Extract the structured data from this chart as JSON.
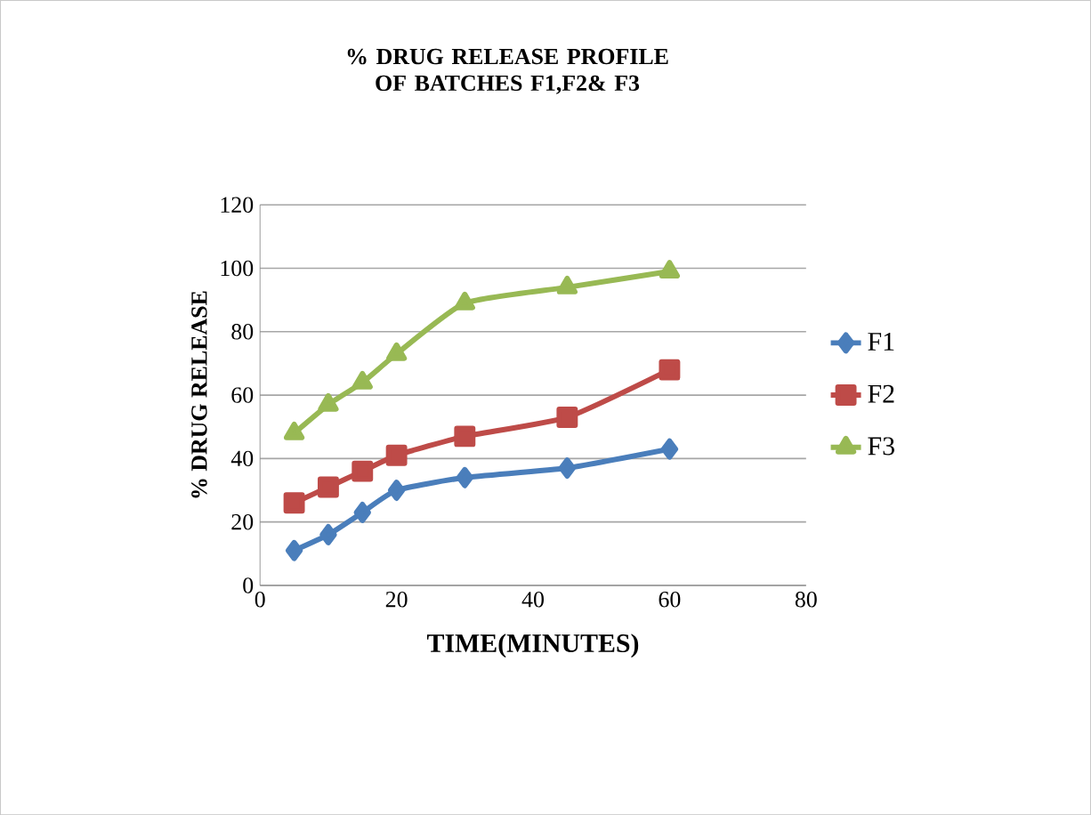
{
  "chart_data": {
    "type": "line",
    "title": "% DRUG RELEASE PROFILE OF BATCHES F1,F2& F3",
    "xlabel": "TIME(MINUTES)",
    "ylabel": "% DRUG RELEASE",
    "x": [
      5,
      10,
      15,
      20,
      30,
      45,
      60
    ],
    "series": [
      {
        "name": "F1",
        "color": "#4a7ebb",
        "marker": "diamond",
        "values": [
          11,
          16,
          23,
          30,
          34,
          37,
          43
        ]
      },
      {
        "name": "F2",
        "color": "#be4b48",
        "marker": "square",
        "values": [
          26,
          31,
          36,
          41,
          47,
          53,
          68
        ]
      },
      {
        "name": "F3",
        "color": "#98b954",
        "marker": "triangle",
        "values": [
          48,
          57,
          64,
          73,
          89,
          94,
          99
        ]
      }
    ],
    "xlim": [
      0,
      80
    ],
    "xticks": [
      0,
      20,
      40,
      60,
      80
    ],
    "ylim": [
      0,
      120
    ],
    "yticks": [
      0,
      20,
      40,
      60,
      80,
      100,
      120
    ],
    "grid": "y",
    "legend": "right"
  }
}
